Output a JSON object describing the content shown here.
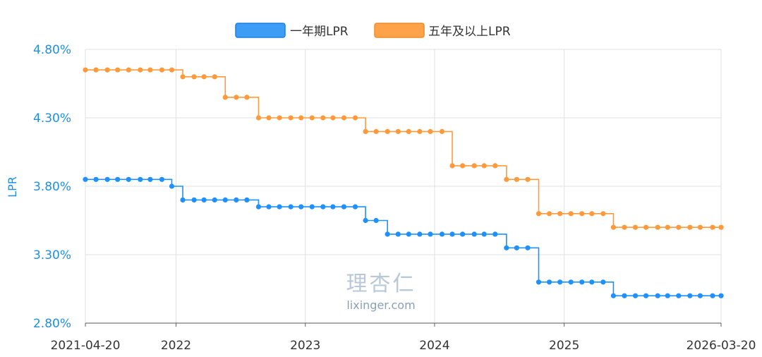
{
  "chart_data": {
    "type": "line",
    "step": true,
    "ylabel": "LPR",
    "ylim": [
      2.8,
      4.8
    ],
    "yticks": [
      "4.80%",
      "4.30%",
      "3.80%",
      "3.30%",
      "2.80%"
    ],
    "xlim": [
      "2021-04-20",
      "2026-03-20"
    ],
    "xticks": [
      "2021-04-20",
      "2022",
      "2023",
      "2024",
      "2025",
      "2026-03-20"
    ],
    "grid": true,
    "legend_position": "top-center",
    "x": [
      "2021-04-20",
      "2021-05-20",
      "2021-06-21",
      "2021-07-20",
      "2021-08-20",
      "2021-09-22",
      "2021-10-20",
      "2021-11-22",
      "2021-12-20",
      "2022-01-20",
      "2022-02-21",
      "2022-03-21",
      "2022-04-20",
      "2022-05-20",
      "2022-06-20",
      "2022-07-20",
      "2022-08-22",
      "2022-09-20",
      "2022-10-20",
      "2022-11-21",
      "2022-12-20",
      "2023-01-20",
      "2023-02-20",
      "2023-03-20",
      "2023-04-20",
      "2023-05-22",
      "2023-06-20",
      "2023-07-20",
      "2023-08-21",
      "2023-09-20",
      "2023-10-20",
      "2023-11-20",
      "2023-12-20",
      "2024-01-22",
      "2024-02-20",
      "2024-03-20",
      "2024-04-22",
      "2024-05-20",
      "2024-06-20",
      "2024-07-22",
      "2024-08-20",
      "2024-09-20",
      "2024-10-21",
      "2024-11-20",
      "2024-12-20",
      "2025-01-20",
      "2025-02-20",
      "2025-03-20",
      "2025-04-21",
      "2025-05-20",
      "2025-06-20",
      "2025-07-21",
      "2025-08-20",
      "2025-09-22",
      "2025-10-20",
      "2025-11-20",
      "2025-12-22",
      "2026-01-20",
      "2026-02-24",
      "2026-03-20"
    ],
    "series": [
      {
        "name": "一年期LPR",
        "color": "#1e90ff",
        "values": [
          3.85,
          3.85,
          3.85,
          3.85,
          3.85,
          3.85,
          3.85,
          3.85,
          3.8,
          3.7,
          3.7,
          3.7,
          3.7,
          3.7,
          3.7,
          3.7,
          3.65,
          3.65,
          3.65,
          3.65,
          3.65,
          3.65,
          3.65,
          3.65,
          3.65,
          3.65,
          3.55,
          3.55,
          3.45,
          3.45,
          3.45,
          3.45,
          3.45,
          3.45,
          3.45,
          3.45,
          3.45,
          3.45,
          3.45,
          3.35,
          3.35,
          3.35,
          3.1,
          3.1,
          3.1,
          3.1,
          3.1,
          3.1,
          3.1,
          3.0,
          3.0,
          3.0,
          3.0,
          3.0,
          3.0,
          3.0,
          3.0,
          3.0,
          3.0,
          3.0
        ]
      },
      {
        "name": "五年及以上LPR",
        "color": "#ff9a3c",
        "values": [
          4.65,
          4.65,
          4.65,
          4.65,
          4.65,
          4.65,
          4.65,
          4.65,
          4.65,
          4.6,
          4.6,
          4.6,
          4.6,
          4.45,
          4.45,
          4.45,
          4.3,
          4.3,
          4.3,
          4.3,
          4.3,
          4.3,
          4.3,
          4.3,
          4.3,
          4.3,
          4.2,
          4.2,
          4.2,
          4.2,
          4.2,
          4.2,
          4.2,
          4.2,
          3.95,
          3.95,
          3.95,
          3.95,
          3.95,
          3.85,
          3.85,
          3.85,
          3.6,
          3.6,
          3.6,
          3.6,
          3.6,
          3.6,
          3.6,
          3.5,
          3.5,
          3.5,
          3.5,
          3.5,
          3.5,
          3.5,
          3.5,
          3.5,
          3.5,
          3.5
        ]
      }
    ]
  },
  "watermark": {
    "main": "理杏仁",
    "sub": "lixinger.com"
  }
}
